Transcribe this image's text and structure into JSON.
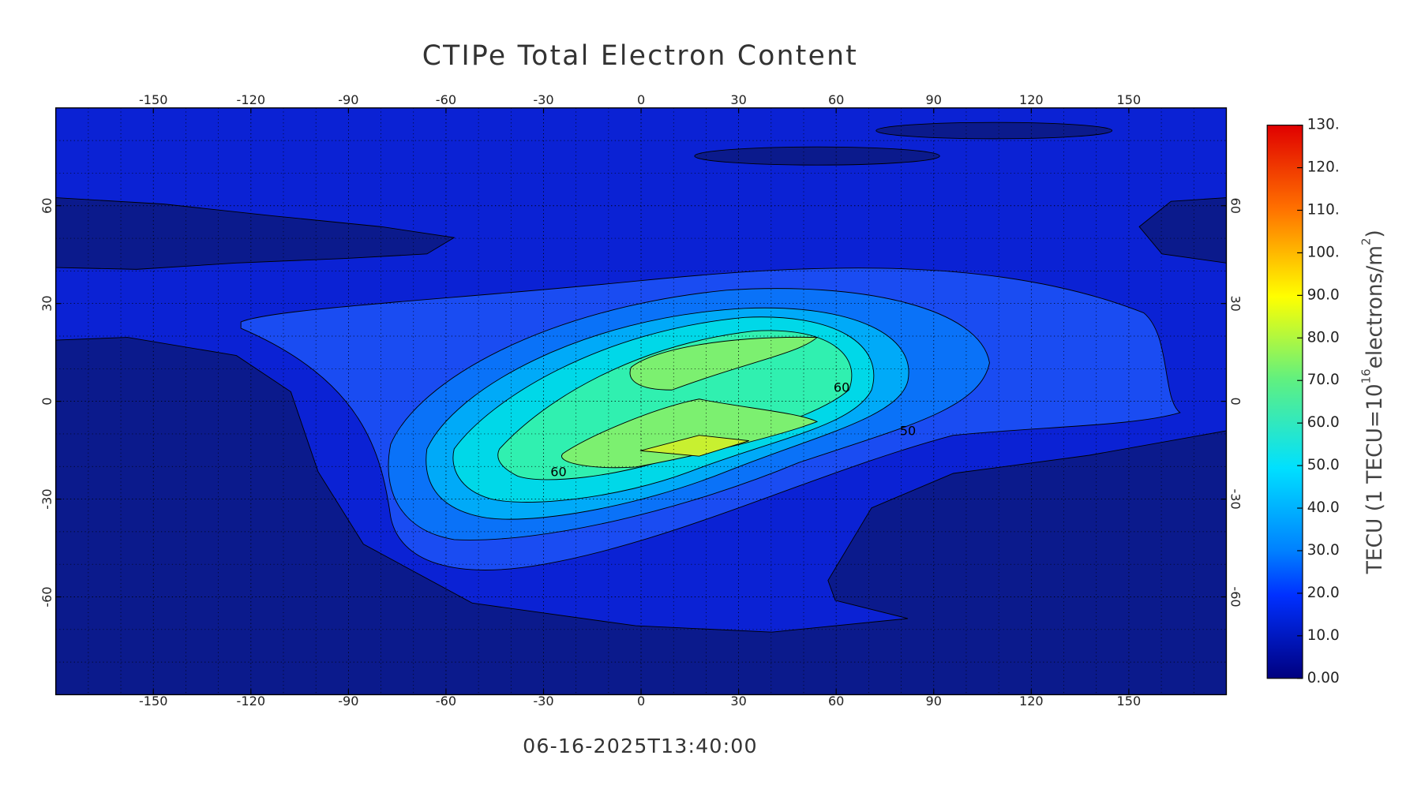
{
  "chart_data": {
    "type": "contour-map",
    "title": "CTIPe Total Electron Content",
    "xlim": [
      -180,
      180
    ],
    "ylim": [
      -90,
      90
    ],
    "xticks": [
      -150,
      -120,
      -90,
      -60,
      -30,
      0,
      30,
      60,
      90,
      120,
      150
    ],
    "yticks": [
      -60,
      -30,
      0,
      30,
      60
    ],
    "grid": true,
    "contour_labels": [
      60,
      60,
      50
    ],
    "colorbar": {
      "lim": [
        0,
        130
      ],
      "ticks": [
        {
          "value": 130,
          "label": "130."
        },
        {
          "value": 120,
          "label": "120."
        },
        {
          "value": 110,
          "label": "110."
        },
        {
          "value": 100,
          "label": "100."
        },
        {
          "value": 90,
          "label": "90.0"
        },
        {
          "value": 80,
          "label": "80.0"
        },
        {
          "value": 70,
          "label": "70.0"
        },
        {
          "value": 60,
          "label": "60.0"
        },
        {
          "value": 50,
          "label": "50.0"
        },
        {
          "value": 40,
          "label": "40.0"
        },
        {
          "value": 30,
          "label": "30.0"
        },
        {
          "value": 20,
          "label": "20.0"
        },
        {
          "value": 10,
          "label": "10.0"
        },
        {
          "value": 0,
          "label": "0.00"
        }
      ],
      "label_parts": [
        "TECU (1 TECU=10",
        "16",
        "electrons/m",
        "2",
        ")"
      ]
    },
    "timestamp": "06-16-2025T13:40:00"
  }
}
